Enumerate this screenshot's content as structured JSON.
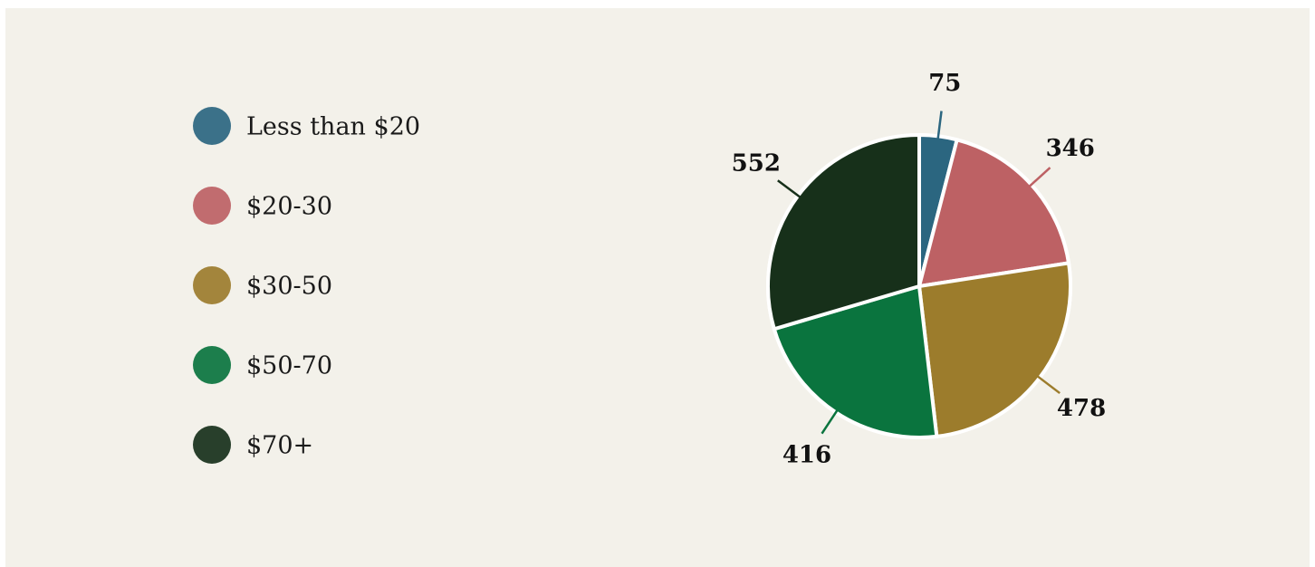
{
  "chart_data": {
    "type": "pie",
    "categories": [
      "Less than $20",
      "$20-30",
      "$30-50",
      "$50-70",
      "$70+"
    ],
    "values": [
      75,
      346,
      478,
      416,
      552
    ],
    "colors": [
      "#2b6680",
      "#bd6164",
      "#9c7c2c",
      "#0a743e",
      "#17301a"
    ],
    "legend": "left"
  }
}
